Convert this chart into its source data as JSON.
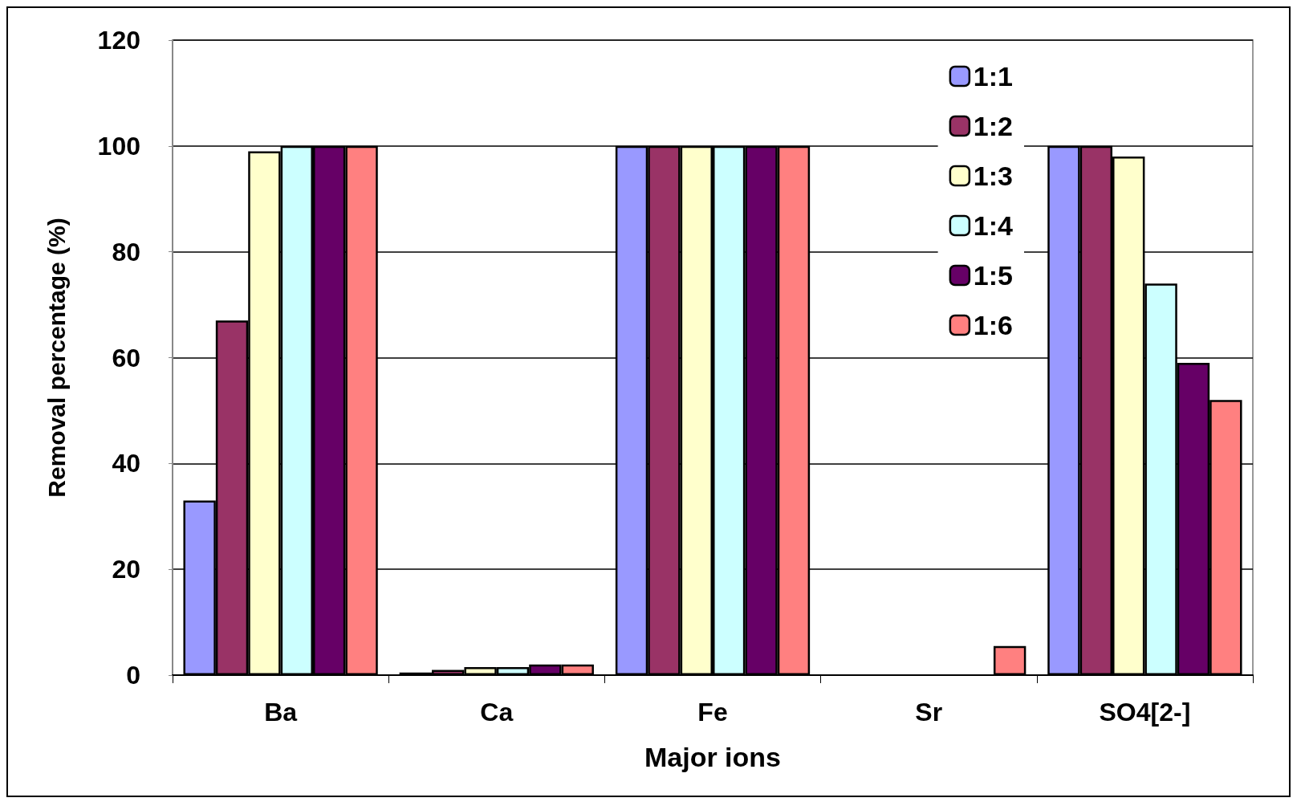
{
  "chart_data": {
    "type": "bar",
    "xlabel": "Major ions",
    "ylabel": "Removal percentage (%)",
    "categories": [
      "Ba",
      "Ca",
      "Fe",
      "Sr",
      "SO4[2-]"
    ],
    "series": [
      {
        "name": "1:1",
        "color": "#9999ff",
        "values": [
          33,
          0.5,
          100,
          null,
          100
        ]
      },
      {
        "name": "1:2",
        "color": "#993366",
        "values": [
          67,
          1,
          100,
          null,
          100
        ]
      },
      {
        "name": "1:3",
        "color": "#ffffcc",
        "values": [
          99,
          1.5,
          100,
          null,
          98
        ]
      },
      {
        "name": "1:4",
        "color": "#ccffff",
        "values": [
          100,
          1.5,
          100,
          null,
          74
        ]
      },
      {
        "name": "1:5",
        "color": "#660066",
        "values": [
          100,
          2,
          100,
          null,
          59
        ]
      },
      {
        "name": "1:6",
        "color": "#ff8080",
        "values": [
          100,
          2,
          100,
          5.5,
          52
        ]
      }
    ],
    "ylim": [
      0,
      120
    ],
    "yticks": [
      0,
      20,
      40,
      60,
      80,
      100,
      120
    ],
    "grid": "y",
    "legend": "top right"
  }
}
